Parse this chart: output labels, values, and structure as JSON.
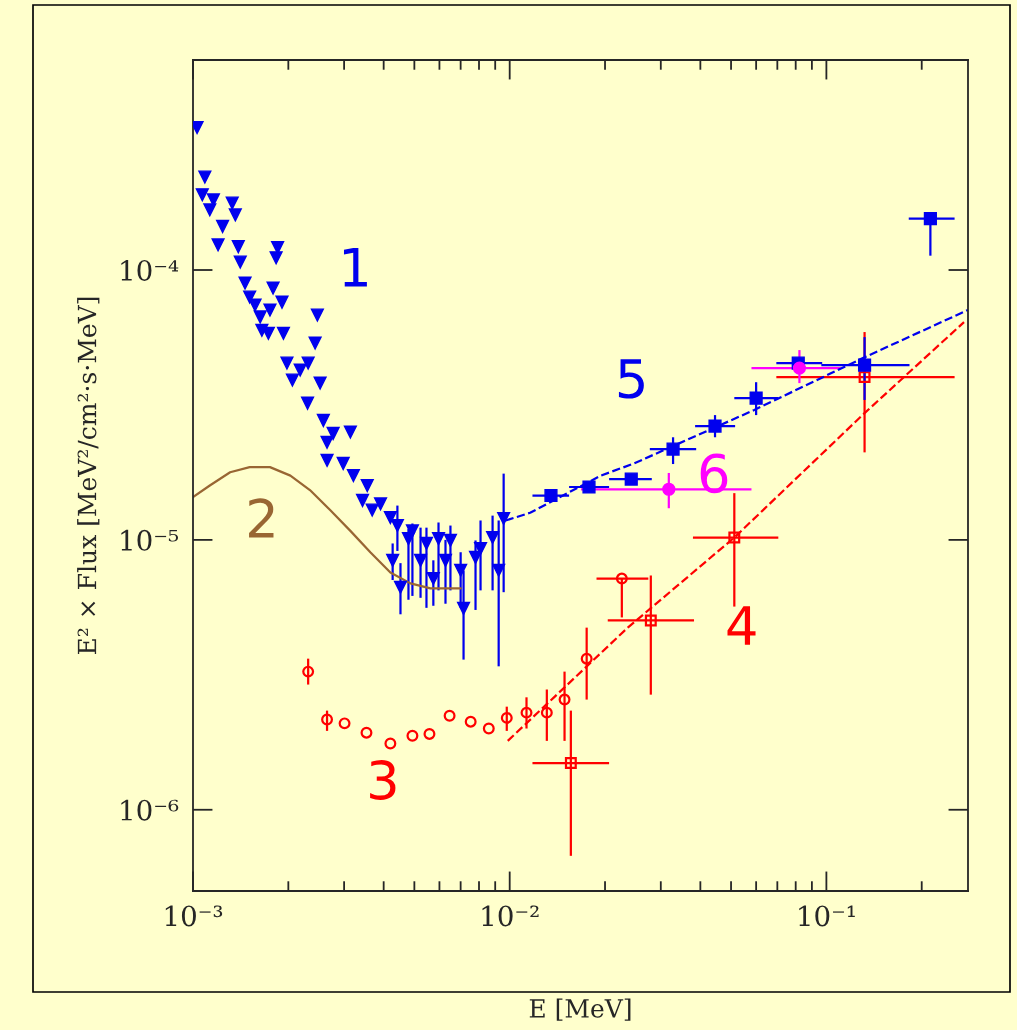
{
  "chart_data": {
    "type": "scatter",
    "xlabel": "E [MeV]",
    "ylabel": "E² × Flux [MeV²/cm²·s·MeV]",
    "log": "xy",
    "grid": false,
    "xlim": [
      0.001,
      0.28
    ],
    "ylim": [
      5e-07,
      0.0006
    ],
    "xticks": [
      {
        "value": 0.001,
        "label": "10⁻³"
      },
      {
        "value": 0.01,
        "label": "10⁻²"
      },
      {
        "value": 0.1,
        "label": "10⁻¹"
      }
    ],
    "yticks": [
      {
        "value": 1e-06,
        "label": "10⁻⁶"
      },
      {
        "value": 1e-05,
        "label": "10⁻⁵"
      },
      {
        "value": 0.0001,
        "label": "10⁻⁴"
      }
    ],
    "series": [
      {
        "name": "1",
        "marker": "triangle",
        "color": "#0000ee",
        "x": [
          0.00103,
          0.00109,
          0.00107,
          0.00113,
          0.00116,
          0.00124,
          0.0012,
          0.00133,
          0.00136,
          0.00139,
          0.00141,
          0.00146,
          0.00151,
          0.00157,
          0.00163,
          0.00165,
          0.00173,
          0.00175,
          0.00179,
          0.00185,
          0.00183,
          0.00191,
          0.00193,
          0.00198,
          0.00206,
          0.00218,
          0.0023,
          0.00231,
          0.00243,
          0.00247,
          0.00252,
          0.00258,
          0.00265,
          0.00265,
          0.00277,
          0.00298,
          0.00314,
          0.00321,
          0.00343,
          0.00355,
          0.00368,
          0.00391,
          0.0042,
          0.00442,
          0.00427,
          0.00452,
          0.00479,
          0.00493,
          0.00523,
          0.00546,
          0.00574,
          0.00596,
          0.00627,
          0.0065,
          0.007,
          0.00715,
          0.0078,
          0.00809,
          0.00883,
          0.00923,
          0.00957
        ],
        "values": [
          0.000337,
          0.000221,
          0.00019,
          0.000167,
          0.000182,
          0.000145,
          0.000124,
          0.000177,
          0.00016,
          0.000122,
          0.000107,
          8.95e-05,
          7.94e-05,
          7.41e-05,
          6.7e-05,
          5.98e-05,
          5.83e-05,
          7.11e-05,
          8.57e-05,
          0.000121,
          0.000111,
          7.6e-05,
          5.83e-05,
          4.52e-05,
          3.91e-05,
          4.26e-05,
          3.21e-05,
          4.52e-05,
          5.36e-05,
          6.81e-05,
          3.81e-05,
          2.77e-05,
          2.3e-05,
          1.97e-05,
          2.48e-05,
          1.92e-05,
          2.51e-05,
          1.73e-05,
          1.4e-05,
          1.59e-05,
          1.29e-05,
          1.36e-05,
          1.21e-05,
          1.13e-05,
          8.39e-06,
          6.67e-06,
          1.01e-05,
          1.08e-05,
          8.39e-06,
          9.7e-06,
          7.19e-06,
          1.01e-05,
          8.39e-06,
          9.95e-06,
          7.71e-06,
          5.57e-06,
          8.61e-06,
          9.29e-06,
          1.02e-05,
          7.71e-06,
          1.2e-05
        ],
        "errors": [
          null,
          null,
          null,
          null,
          null,
          null,
          null,
          null,
          null,
          null,
          null,
          null,
          null,
          null,
          null,
          null,
          null,
          null,
          null,
          null,
          null,
          null,
          null,
          null,
          null,
          null,
          null,
          null,
          null,
          null,
          null,
          null,
          null,
          null,
          null,
          null,
          null,
          null,
          null,
          null,
          null,
          null,
          null,
          [
            9.1e-06,
            1.34e-05
          ],
          [
            7.1e-06,
            9.7e-06
          ],
          [
            5.3e-06,
            8.2e-06
          ],
          [
            6e-06,
            1.1e-05
          ],
          [
            6.2e-06,
            1.15e-05
          ],
          [
            6.1e-06,
            1.11e-05
          ],
          [
            5.6e-06,
            1.11e-05
          ],
          [
            5.7e-06,
            8.4e-06
          ],
          [
            6.5e-06,
            1.16e-05
          ],
          [
            5.8e-06,
            1e-05
          ],
          [
            6.5e-06,
            1.13e-05
          ],
          [
            5.6e-06,
            9e-06
          ],
          [
            3.6e-06,
            7.7e-06
          ],
          [
            5.5e-06,
            9.95e-06
          ],
          [
            6.5e-06,
            1.18e-05
          ],
          [
            6.5e-06,
            1.23e-05
          ],
          [
            3.4e-06,
            1.18e-05
          ],
          [
            6.4e-06,
            1.76e-05
          ]
        ]
      },
      {
        "name": "2",
        "type": "line",
        "line_style": "solid",
        "color": "#996633",
        "x": [
          0.001,
          0.00113,
          0.00131,
          0.00151,
          0.00175,
          0.00203,
          0.00234,
          0.00271,
          0.00314,
          0.00363,
          0.0042,
          0.00486,
          0.00562,
          0.007
        ],
        "values": [
          1.44e-05,
          1.59e-05,
          1.78e-05,
          1.86e-05,
          1.86e-05,
          1.73e-05,
          1.53e-05,
          1.29e-05,
          1.08e-05,
          9e-06,
          7.57e-06,
          6.9e-06,
          6.61e-06,
          6.61e-06
        ]
      },
      {
        "name": "3",
        "marker": "circle",
        "color": "#ff0000",
        "x": [
          0.00231,
          0.00265,
          0.00301,
          0.00353,
          0.0042,
          0.00493,
          0.00558,
          0.00646,
          0.00753,
          0.00859,
          0.00979,
          0.0113,
          0.0131,
          0.0149,
          0.0175
        ],
        "values": [
          3.25e-06,
          2.16e-06,
          2.09e-06,
          1.93e-06,
          1.76e-06,
          1.88e-06,
          1.91e-06,
          2.23e-06,
          2.12e-06,
          2e-06,
          2.19e-06,
          2.29e-06,
          2.29e-06,
          2.56e-06,
          3.63e-06
        ],
        "errors": [
          [
            2.91e-06,
            3.63e-06
          ],
          [
            1.96e-06,
            2.33e-06
          ],
          null,
          null,
          null,
          null,
          null,
          null,
          null,
          null,
          [
            1.96e-06,
            2.41e-06
          ],
          [
            2e-06,
            2.61e-06
          ],
          [
            1.8e-06,
            2.79e-06
          ],
          [
            1.8e-06,
            3.25e-06
          ],
          [
            2.56e-06,
            4.73e-06
          ]
        ]
      },
      {
        "name": "4",
        "marker": "square",
        "color": "#ff0000",
        "x": [
          0.0156,
          0.0279,
          0.0512,
          0.132
        ],
        "values": [
          1.49e-06,
          5.03e-06,
          1.02e-05,
          4.01e-05
        ],
        "errors": [
          [
            6.75e-07,
            2.33e-06
          ],
          [
            2.67e-06,
            7.38e-06
          ],
          [
            5.66e-06,
            1.49e-05
          ],
          [
            2.11e-05,
            5.89e-05
          ]
        ],
        "xerrors": [
          [
            0.0118,
            0.0206
          ],
          [
            0.0204,
            0.0382
          ],
          [
            0.0379,
            0.0705
          ],
          [
            0.0695,
            0.254
          ]
        ]
      },
      {
        "name": "5",
        "marker": "square",
        "color": "#0000ee",
        "x": [
          0.0135,
          0.0178,
          0.0242,
          0.0328,
          0.0445,
          0.06,
          0.0815,
          0.132,
          0.213
        ],
        "values": [
          1.46e-05,
          1.57e-05,
          1.68e-05,
          2.17e-05,
          2.64e-05,
          3.35e-05,
          4.52e-05,
          4.44e-05,
          0.000155
        ],
        "errors": [
          null,
          null,
          null,
          [
            1.91e-05,
            2.4e-05
          ],
          [
            2.4e-05,
            2.9e-05
          ],
          [
            2.9e-05,
            3.84e-05
          ],
          null,
          [
            3.3e-05,
            5.64e-05
          ],
          [
            0.000113,
            0.000155
          ]
        ],
        "xerrors": [
          [
            0.0118,
            0.0154
          ],
          [
            0.0154,
            0.0206
          ],
          [
            0.0206,
            0.0281
          ],
          [
            0.0277,
            0.0388
          ],
          [
            0.0385,
            0.0515
          ],
          [
            0.0512,
            0.0705
          ],
          [
            0.0695,
            0.097
          ],
          [
            0.0964,
            0.183
          ],
          [
            0.182,
            0.254
          ]
        ]
      },
      {
        "name": "6",
        "marker": "circle",
        "color": "#ff00ff",
        "x": [
          0.0318,
          0.0822
        ],
        "values": [
          1.54e-05,
          4.33e-05
        ],
        "errors": [
          [
            1.31e-05,
            1.77e-05
          ],
          [
            3.81e-05,
            5.05e-05
          ]
        ],
        "xerrors": [
          [
            0.0168,
            0.058
          ],
          [
            0.058,
            0.111
          ]
        ]
      },
      {
        "marker": "circle",
        "color": "#ff0000",
        "x": [
          0.0226
        ],
        "values": [
          7.19e-06
        ],
        "errors": [
          [
            5.16e-06,
            7.19e-06
          ]
        ],
        "xerrors": [
          [
            0.0188,
            0.0274
          ]
        ]
      },
      {
        "type": "line",
        "line_style": "dashed",
        "color": "#0000ee",
        "x": [
          0.00971,
          0.0116,
          0.0194,
          0.0247,
          0.0592,
          0.132,
          0.28
        ],
        "values": [
          1.18e-05,
          1.26e-05,
          1.73e-05,
          1.92e-05,
          3.03e-05,
          4.75e-05,
          7.11e-05
        ]
      },
      {
        "type": "line",
        "line_style": "dashed",
        "color": "#ff0000",
        "x": [
          0.00986,
          0.0138,
          0.0236,
          0.0512,
          0.132,
          0.272
        ],
        "values": [
          1.8e-06,
          2.61e-06,
          4.73e-06,
          1.02e-05,
          2.95e-05,
          6.41e-05
        ]
      }
    ]
  }
}
